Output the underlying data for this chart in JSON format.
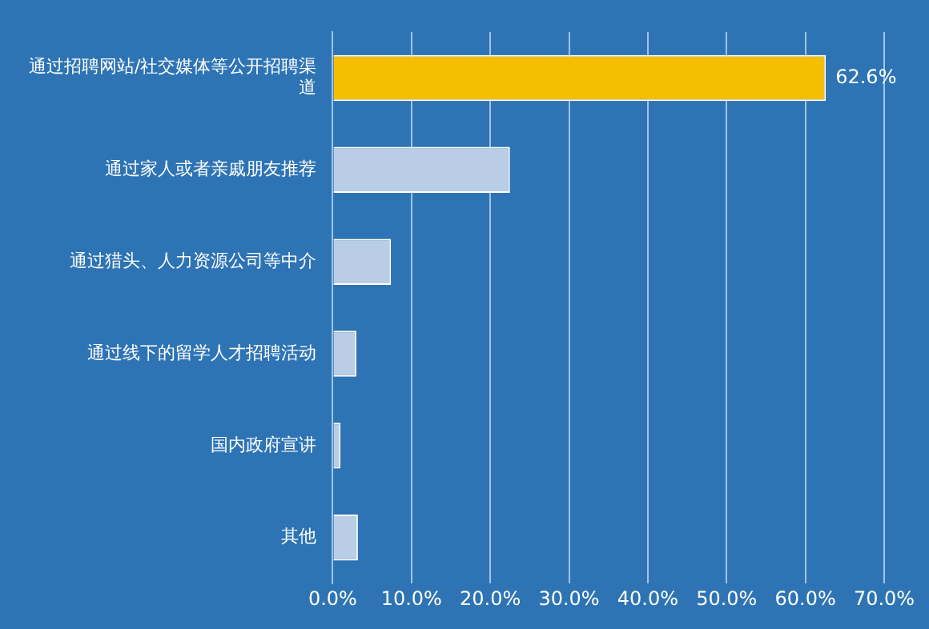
{
  "chart_data": {
    "type": "bar",
    "orientation": "horizontal",
    "categories": [
      "通过招聘网站/社交媒体等公开招聘渠道",
      "通过家人或者亲戚朋友推荐",
      "通过猎头、人力资源公司等中介",
      "通过线下的留学人才招聘活动",
      "国内政府宣讲",
      "其他"
    ],
    "values": [
      62.6,
      22.5,
      7.4,
      3.0,
      1.0,
      3.2
    ],
    "colors": [
      "#f5be00",
      "#b9cde6",
      "#b9cde6",
      "#b9cde6",
      "#b9cde6",
      "#b9cde6"
    ],
    "value_labels": [
      "62.6%",
      null,
      null,
      null,
      null,
      null
    ],
    "xlim": [
      0,
      70
    ],
    "xticks": [
      {
        "value": 0,
        "label": "0.0%"
      },
      {
        "value": 10,
        "label": "10.0%"
      },
      {
        "value": 20,
        "label": "20.0%"
      },
      {
        "value": 30,
        "label": "30.0%"
      },
      {
        "value": 40,
        "label": "40.0%"
      },
      {
        "value": 50,
        "label": "50.0%"
      },
      {
        "value": 60,
        "label": "60.0%"
      },
      {
        "value": 70,
        "label": "70.0%"
      }
    ],
    "grid": "x",
    "legend": false
  }
}
